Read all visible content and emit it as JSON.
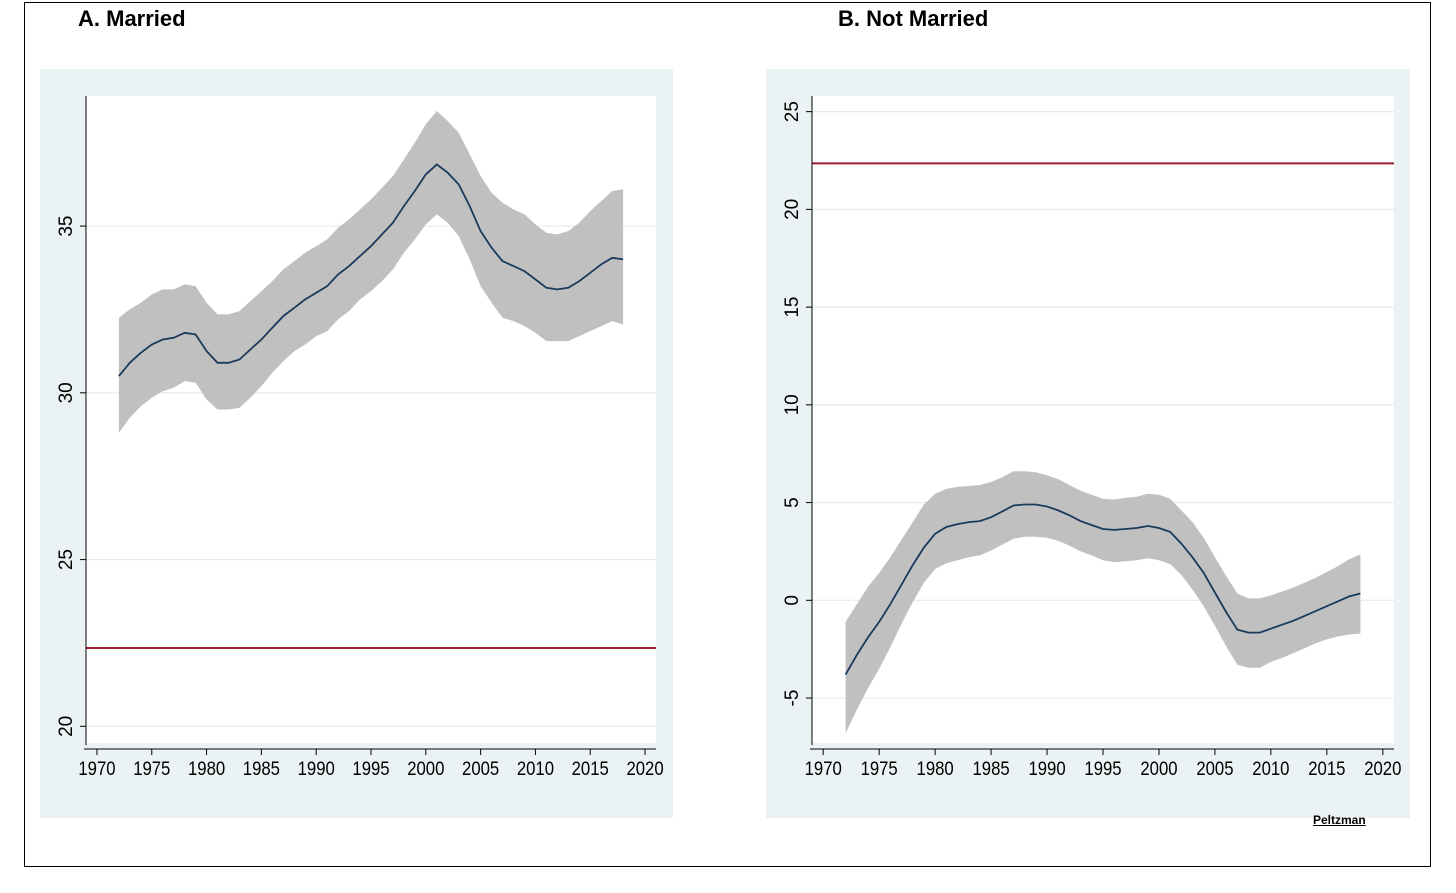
{
  "credit": "Peltzman",
  "colors": {
    "band": "#c0c0c0",
    "line": "#1a3a5c",
    "reference": "#9b1c31",
    "panel_bg": "#eaf2f3",
    "plot_bg": "#ffffff",
    "grid": "#e3ecee"
  },
  "chart_data": [
    {
      "type": "line",
      "title": "A.  Married",
      "xlabel": "",
      "ylabel": "",
      "xlim": [
        1969,
        2021
      ],
      "ylim": [
        19.5,
        38.9
      ],
      "xticks": [
        1970,
        1975,
        1980,
        1985,
        1990,
        1995,
        2000,
        2005,
        2010,
        2015,
        2020
      ],
      "yticks": [
        20,
        25,
        30,
        35
      ],
      "reference_line": 22.35,
      "x": [
        1972,
        1973,
        1974,
        1975,
        1976,
        1977,
        1978,
        1979,
        1980,
        1981,
        1982,
        1983,
        1984,
        1985,
        1986,
        1987,
        1988,
        1989,
        1990,
        1991,
        1992,
        1993,
        1994,
        1995,
        1996,
        1997,
        1998,
        1999,
        2000,
        2001,
        2002,
        2003,
        2004,
        2005,
        2006,
        2007,
        2008,
        2009,
        2010,
        2011,
        2012,
        2013,
        2014,
        2015,
        2016,
        2017,
        2018
      ],
      "y": [
        30.5,
        30.9,
        31.2,
        31.45,
        31.6,
        31.65,
        31.8,
        31.75,
        31.25,
        30.9,
        30.9,
        31.0,
        31.3,
        31.6,
        31.95,
        32.3,
        32.55,
        32.8,
        33.0,
        33.2,
        33.55,
        33.8,
        34.1,
        34.4,
        34.75,
        35.1,
        35.6,
        36.05,
        36.55,
        36.85,
        36.6,
        36.25,
        35.6,
        34.85,
        34.35,
        33.95,
        33.8,
        33.65,
        33.4,
        33.15,
        33.1,
        33.15,
        33.35,
        33.6,
        33.85,
        34.05,
        34.0
      ],
      "lower": [
        28.8,
        29.25,
        29.6,
        29.85,
        30.05,
        30.15,
        30.35,
        30.3,
        29.8,
        29.5,
        29.5,
        29.55,
        29.85,
        30.2,
        30.6,
        30.95,
        31.25,
        31.45,
        31.7,
        31.85,
        32.2,
        32.45,
        32.8,
        33.05,
        33.35,
        33.7,
        34.2,
        34.6,
        35.05,
        35.35,
        35.1,
        34.7,
        34.0,
        33.2,
        32.7,
        32.25,
        32.15,
        32.0,
        31.8,
        31.55,
        31.55,
        31.55,
        31.7,
        31.85,
        32.0,
        32.15,
        32.05
      ],
      "upper": [
        32.25,
        32.5,
        32.7,
        32.95,
        33.1,
        33.1,
        33.25,
        33.2,
        32.7,
        32.35,
        32.35,
        32.45,
        32.75,
        33.05,
        33.35,
        33.7,
        33.95,
        34.2,
        34.4,
        34.6,
        34.95,
        35.2,
        35.5,
        35.8,
        36.15,
        36.5,
        37.0,
        37.5,
        38.05,
        38.45,
        38.15,
        37.8,
        37.15,
        36.5,
        36.0,
        35.7,
        35.5,
        35.35,
        35.05,
        34.8,
        34.75,
        34.85,
        35.1,
        35.45,
        35.75,
        36.05,
        36.1
      ]
    },
    {
      "type": "line",
      "title": "B. Not Married",
      "xlabel": "",
      "ylabel": "",
      "xlim": [
        1969,
        2021
      ],
      "ylim": [
        -7.3,
        25.8
      ],
      "xticks": [
        1970,
        1975,
        1980,
        1985,
        1990,
        1995,
        2000,
        2005,
        2010,
        2015,
        2020
      ],
      "yticks": [
        -5,
        0,
        5,
        10,
        15,
        20,
        25
      ],
      "reference_line": 22.35,
      "x": [
        1972,
        1973,
        1974,
        1975,
        1976,
        1977,
        1978,
        1979,
        1980,
        1981,
        1982,
        1983,
        1984,
        1985,
        1986,
        1987,
        1988,
        1989,
        1990,
        1991,
        1992,
        1993,
        1994,
        1995,
        1996,
        1997,
        1998,
        1999,
        2000,
        2001,
        2002,
        2003,
        2004,
        2005,
        2006,
        2007,
        2008,
        2009,
        2010,
        2011,
        2012,
        2013,
        2014,
        2015,
        2016,
        2017,
        2018
      ],
      "y": [
        -3.8,
        -2.8,
        -1.9,
        -1.1,
        -0.2,
        0.8,
        1.8,
        2.7,
        3.4,
        3.75,
        3.9,
        4.0,
        4.05,
        4.25,
        4.55,
        4.85,
        4.9,
        4.9,
        4.8,
        4.6,
        4.35,
        4.05,
        3.85,
        3.65,
        3.6,
        3.65,
        3.7,
        3.8,
        3.7,
        3.5,
        2.9,
        2.2,
        1.4,
        0.4,
        -0.6,
        -1.5,
        -1.65,
        -1.65,
        -1.45,
        -1.25,
        -1.05,
        -0.8,
        -0.55,
        -0.3,
        -0.05,
        0.2,
        0.35
      ],
      "lower": [
        -6.8,
        -5.6,
        -4.5,
        -3.5,
        -2.4,
        -1.2,
        -0.1,
        0.9,
        1.6,
        1.9,
        2.05,
        2.2,
        2.3,
        2.55,
        2.85,
        3.15,
        3.25,
        3.25,
        3.2,
        3.05,
        2.8,
        2.5,
        2.3,
        2.05,
        1.95,
        2.0,
        2.05,
        2.15,
        2.05,
        1.85,
        1.3,
        0.55,
        -0.3,
        -1.3,
        -2.35,
        -3.3,
        -3.45,
        -3.45,
        -3.15,
        -2.95,
        -2.7,
        -2.45,
        -2.2,
        -2.0,
        -1.85,
        -1.75,
        -1.7
      ],
      "upper": [
        -1.1,
        -0.2,
        0.7,
        1.4,
        2.2,
        3.1,
        4.0,
        4.9,
        5.45,
        5.7,
        5.8,
        5.85,
        5.9,
        6.05,
        6.3,
        6.6,
        6.6,
        6.55,
        6.4,
        6.2,
        5.9,
        5.6,
        5.4,
        5.2,
        5.15,
        5.25,
        5.3,
        5.45,
        5.4,
        5.2,
        4.6,
        4.0,
        3.2,
        2.2,
        1.25,
        0.35,
        0.1,
        0.1,
        0.25,
        0.45,
        0.65,
        0.9,
        1.15,
        1.45,
        1.75,
        2.1,
        2.35
      ]
    }
  ]
}
